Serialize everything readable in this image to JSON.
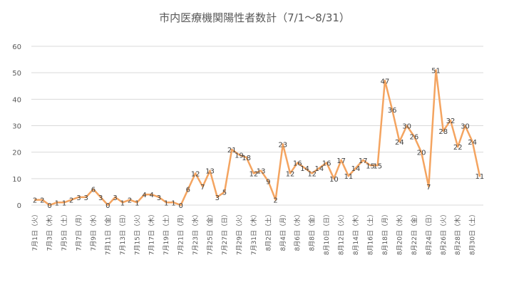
{
  "chart_data": {
    "type": "line",
    "title": "市内医療機関陽性者数計（7/1～8/31）",
    "xlabel": "",
    "ylabel": "",
    "ylim": [
      0,
      60
    ],
    "yticks": [
      0,
      10,
      20,
      30,
      40,
      50,
      60
    ],
    "grid": true,
    "legend": "none",
    "line_color": "#F4A460",
    "categories": [
      "7/1",
      "7/2",
      "7/3",
      "7/4",
      "7/5",
      "7/6",
      "7/7",
      "7/8",
      "7/9",
      "7/10",
      "7/11",
      "7/12",
      "7/13",
      "7/14",
      "7/15",
      "7/16",
      "7/17",
      "7/18",
      "7/19",
      "7/20",
      "7/21",
      "7/22",
      "7/23",
      "7/24",
      "7/25",
      "7/26",
      "7/27",
      "7/28",
      "7/29",
      "7/30",
      "7/31",
      "8/1",
      "8/2",
      "8/3",
      "8/4",
      "8/5",
      "8/6",
      "8/7",
      "8/8",
      "8/9",
      "8/10",
      "8/11",
      "8/12",
      "8/13",
      "8/14",
      "8/15",
      "8/16",
      "8/17",
      "8/18",
      "8/19",
      "8/20",
      "8/21",
      "8/22",
      "8/23",
      "8/24",
      "8/25",
      "8/26",
      "8/27",
      "8/28",
      "8/29",
      "8/30",
      "8/31"
    ],
    "tick_labels": [
      "7月1日（火）",
      "7月3日（木）",
      "7月5日（土）",
      "7月7日（月）",
      "7月9日（水）",
      "7月11日（金）",
      "7月13日（日）",
      "7月15日（火）",
      "7月17日（木）",
      "7月19日（土）",
      "7月21日（月）",
      "7月23日（水）",
      "7月25日（金）",
      "7月27日（日）",
      "7月29日（火）",
      "7月31日（木）",
      "8月2日（土）",
      "8月4日（月）",
      "8月6日（水）",
      "8月8日（金）",
      "8月10日（日）",
      "8月12日（火）",
      "8月14日（木）",
      "8月16日（土）",
      "8月18日（月）",
      "8月20日（水）",
      "8月22日（金）",
      "8月24日（日）",
      "8月26日（火）",
      "8月28日（木）",
      "8月30日（土）"
    ],
    "series": [
      {
        "values": [
          2,
          2,
          0,
          1,
          1,
          2,
          3,
          3,
          6,
          3,
          0,
          3,
          1,
          2,
          1,
          4,
          4,
          3,
          1,
          1,
          0,
          6,
          12,
          7,
          13,
          3,
          5,
          21,
          19,
          18,
          12,
          13,
          9,
          2,
          23,
          12,
          16,
          14,
          12,
          14,
          16,
          10,
          17,
          11,
          14,
          17,
          15,
          15,
          47,
          36,
          24,
          30,
          26,
          20,
          7,
          51,
          28,
          32,
          22,
          30,
          24,
          11
        ]
      }
    ]
  }
}
